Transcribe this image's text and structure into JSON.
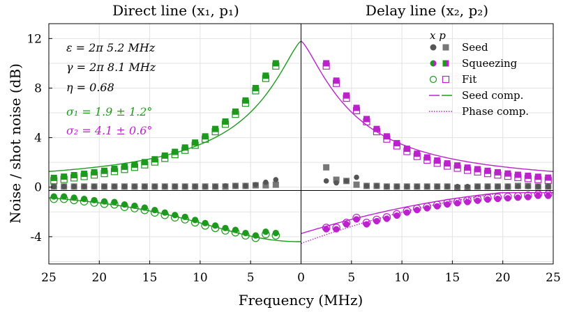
{
  "chart_data": {
    "type": "scatter",
    "panels": [
      {
        "title": "Direct line (x₁, p₁)",
        "x_direction": "reversed",
        "xlim": [
          0,
          25
        ]
      },
      {
        "title": "Delay line (x₂, p₂)",
        "x_direction": "normal",
        "xlim": [
          0,
          25
        ]
      }
    ],
    "xlabel": "Frequency (MHz)",
    "ylabel": "Noise / shot noise (dB)",
    "ylim": [
      -6.2,
      13.2
    ],
    "x_ticks": [
      "25",
      "20",
      "15",
      "10",
      "5",
      "0",
      "5",
      "10",
      "15",
      "20",
      "25"
    ],
    "y_ticks": [
      -4,
      0,
      4,
      8,
      12
    ],
    "y_tick_labels": [
      "-4",
      "0",
      "4",
      "8",
      "12"
    ],
    "grid": true,
    "params": {
      "eps": "ε = 2π 5.2 MHz",
      "gamma": "γ = 2π 8.1 MHz",
      "eta": "η = 0.68",
      "sigma1": "σ₁ = 1.9 ± 1.2°",
      "sigma2": "σ₂ = 4.1 ± 0.6°"
    },
    "legend": {
      "header": "x  p",
      "entries": [
        "Seed",
        "Squeezing",
        "Fit",
        "Seed comp.",
        "Phase comp."
      ],
      "position": "top-right"
    },
    "colors": {
      "direct": "#1d9a1d",
      "delay": "#bb22cc",
      "seed": "#555555"
    },
    "series": {
      "direct_squeezing_p": {
        "x": [
          24.5,
          23.5,
          22.5,
          21.5,
          20.5,
          19.5,
          18.5,
          17.5,
          16.5,
          15.5,
          14.5,
          13.5,
          12.5,
          11.5,
          10.5,
          9.5,
          8.5,
          7.5,
          6.5,
          5.5,
          4.5,
          3.5,
          2.5
        ],
        "y": [
          0.75,
          0.85,
          0.97,
          1.08,
          1.2,
          1.32,
          1.48,
          1.65,
          1.82,
          2.02,
          2.25,
          2.55,
          2.85,
          3.2,
          3.6,
          4.1,
          4.7,
          5.3,
          6.1,
          7.0,
          8.0,
          9.0,
          10.0
        ]
      },
      "direct_squeezing_x": {
        "x": [
          24.5,
          23.5,
          22.5,
          21.5,
          20.5,
          19.5,
          18.5,
          17.5,
          16.5,
          15.5,
          14.5,
          13.5,
          12.5,
          11.5,
          10.5,
          9.5,
          8.5,
          7.5,
          6.5,
          5.5,
          4.5,
          3.5,
          2.5
        ],
        "y": [
          -0.75,
          -0.75,
          -0.85,
          -0.95,
          -1.05,
          -1.15,
          -1.2,
          -1.4,
          -1.5,
          -1.65,
          -1.85,
          -2.05,
          -2.25,
          -2.4,
          -2.65,
          -2.9,
          -3.1,
          -3.3,
          -3.45,
          -3.7,
          -3.9,
          -3.6,
          -3.7
        ]
      },
      "direct_seed_p": {
        "x": [
          24.5,
          23.5,
          22.5,
          21.5,
          20.5,
          19.5,
          18.5,
          17.5,
          16.5,
          15.5,
          14.5,
          13.5,
          12.5,
          11.5,
          10.5,
          9.5,
          8.5,
          7.5,
          6.5,
          5.5,
          4.5,
          3.5,
          2.5
        ],
        "y": [
          0.05,
          0.05,
          0.05,
          0.05,
          0.05,
          0.05,
          0.05,
          0.05,
          0.05,
          0.05,
          0.05,
          0.05,
          0.05,
          0.05,
          0.05,
          0.05,
          0.05,
          0.05,
          0.1,
          0.1,
          0.15,
          0.15,
          0.2
        ]
      },
      "direct_seed_x": {
        "x": [
          24.5,
          23.5,
          22.5,
          21.5,
          20.5,
          19.5,
          18.5,
          17.5,
          16.5,
          15.5,
          14.5,
          13.5,
          12.5,
          11.5,
          10.5,
          9.5,
          8.5,
          7.5,
          6.5,
          5.5,
          4.5,
          3.5,
          2.5
        ],
        "y": [
          0.05,
          0.05,
          0.05,
          0.05,
          0.05,
          0.05,
          0.05,
          0.05,
          0.05,
          0.05,
          0.05,
          0.05,
          0.05,
          0.05,
          0.05,
          0.05,
          0.05,
          0.1,
          0.1,
          0.1,
          0.2,
          0.4,
          0.6
        ]
      },
      "delay_squeezing_p": {
        "x": [
          2.5,
          3.5,
          4.5,
          5.5,
          6.5,
          7.5,
          8.5,
          9.5,
          10.5,
          11.5,
          12.5,
          13.5,
          14.5,
          15.5,
          16.5,
          17.5,
          18.5,
          19.5,
          20.5,
          21.5,
          22.5,
          23.5,
          24.5
        ],
        "y": [
          10.0,
          8.6,
          7.4,
          6.4,
          5.5,
          4.7,
          4.1,
          3.55,
          3.1,
          2.7,
          2.4,
          2.15,
          1.92,
          1.75,
          1.58,
          1.45,
          1.32,
          1.2,
          1.1,
          1.0,
          0.92,
          0.84,
          0.77
        ]
      },
      "delay_squeezing_x": {
        "x": [
          2.5,
          3.5,
          4.5,
          5.5,
          6.5,
          7.5,
          8.5,
          9.5,
          10.5,
          11.5,
          12.5,
          13.5,
          14.5,
          15.5,
          16.5,
          17.5,
          18.5,
          19.5,
          20.5,
          21.5,
          22.5,
          23.5,
          24.5
        ],
        "y": [
          -3.4,
          -3.4,
          -3.0,
          -2.6,
          -3.0,
          -2.75,
          -2.55,
          -2.3,
          -2.05,
          -1.85,
          -1.7,
          -1.55,
          -1.4,
          -1.3,
          -1.2,
          -1.1,
          -1.0,
          -0.95,
          -0.9,
          -0.85,
          -0.8,
          -0.7,
          -0.7
        ]
      },
      "delay_seed_p": {
        "x": [
          2.5,
          3.5,
          4.5,
          5.5,
          6.5,
          7.5,
          8.5,
          9.5,
          10.5,
          11.5,
          12.5,
          13.5,
          14.5,
          15.5,
          16.5,
          17.5,
          18.5,
          19.5,
          20.5,
          21.5,
          22.5,
          23.5,
          24.5
        ],
        "y": [
          1.6,
          0.6,
          0.5,
          0.2,
          0.1,
          0.1,
          0.05,
          0.05,
          0.05,
          0.05,
          0.05,
          0.05,
          0.05,
          -0.05,
          -0.05,
          0.05,
          0.05,
          0.05,
          0.05,
          0.1,
          0.1,
          0.05,
          0.05
        ]
      },
      "delay_seed_x": {
        "x": [
          2.5,
          3.5,
          4.5,
          5.5,
          6.5,
          7.5,
          8.5,
          9.5,
          10.5,
          11.5,
          12.5,
          13.5,
          14.5,
          15.5,
          16.5,
          17.5,
          18.5,
          19.5,
          20.5,
          21.5,
          22.5,
          23.5,
          24.5
        ],
        "y": [
          0.5,
          0.35,
          0.5,
          0.8,
          0.1,
          0.1,
          0.05,
          0.05,
          0.05,
          0.05,
          0.05,
          0.05,
          0.05,
          0.05,
          0.05,
          0.05,
          0.05,
          0.05,
          0.05,
          0.05,
          0.05,
          0.05,
          0.05
        ]
      }
    }
  }
}
